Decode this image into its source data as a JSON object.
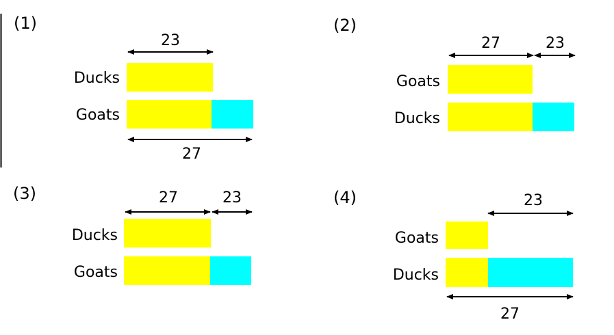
{
  "colors": {
    "base": "#ffff00",
    "extra": "#00ffff",
    "line": "#000000"
  },
  "panels": [
    {
      "label": "(1)",
      "rows": [
        {
          "name": "Ducks",
          "segments": [
            {
              "color": "base"
            }
          ]
        },
        {
          "name": "Goats",
          "segments": [
            {
              "color": "base"
            },
            {
              "color": "extra"
            }
          ]
        }
      ],
      "dims": [
        {
          "text": "23"
        },
        {
          "text": "27"
        }
      ]
    },
    {
      "label": "(2)",
      "rows": [
        {
          "name": "Goats",
          "segments": [
            {
              "color": "base"
            }
          ]
        },
        {
          "name": "Ducks",
          "segments": [
            {
              "color": "base"
            },
            {
              "color": "extra"
            }
          ]
        }
      ],
      "dims": [
        {
          "text": "27"
        },
        {
          "text": "23"
        }
      ]
    },
    {
      "label": "(3)",
      "rows": [
        {
          "name": "Ducks",
          "segments": [
            {
              "color": "base"
            }
          ]
        },
        {
          "name": "Goats",
          "segments": [
            {
              "color": "base"
            },
            {
              "color": "extra"
            }
          ]
        }
      ],
      "dims": [
        {
          "text": "27"
        },
        {
          "text": "23"
        }
      ]
    },
    {
      "label": "(4)",
      "rows": [
        {
          "name": "Goats",
          "segments": [
            {
              "color": "base"
            }
          ]
        },
        {
          "name": "Ducks",
          "segments": [
            {
              "color": "base"
            },
            {
              "color": "extra"
            }
          ]
        }
      ],
      "dims": [
        {
          "text": "23"
        },
        {
          "text": "27"
        }
      ]
    }
  ]
}
